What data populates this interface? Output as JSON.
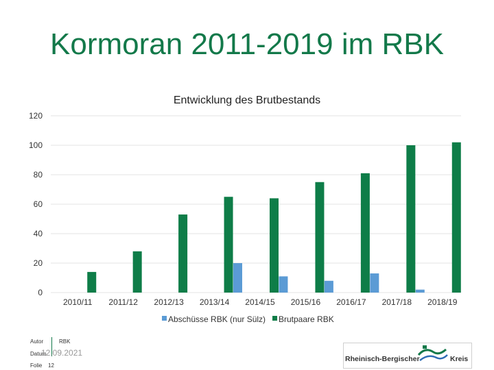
{
  "slide": {
    "title": "Kormoran 2011-2019 im RBK"
  },
  "colors": {
    "title": "#13794a",
    "series_1": "#5b9bd5",
    "series_2": "#0e7d48"
  },
  "chart_data": {
    "type": "bar",
    "title": "Entwicklung des Brutbestands",
    "categories": [
      "2010/11",
      "2011/12",
      "2012/13",
      "2013/14",
      "2014/15",
      "2015/16",
      "2016/17",
      "2017/18",
      "2018/19"
    ],
    "series": [
      {
        "name": "Abschüsse RBK (nur Sülz)",
        "values": [
          0,
          0,
          0,
          0,
          20,
          11,
          8,
          13,
          2
        ]
      },
      {
        "name": "Brutpaare RBK",
        "values": [
          14,
          28,
          53,
          65,
          64,
          75,
          81,
          100,
          102
        ]
      }
    ],
    "yticks": [
      "0",
      "20",
      "40",
      "60",
      "80",
      "100",
      "120"
    ],
    "ylim": [
      0,
      120
    ],
    "grid": true,
    "legend": "bottom"
  },
  "footer": {
    "autor_label": "Autor",
    "autor_value": "RBK",
    "datum_label": "Datum",
    "date": "12.09.2021",
    "folie_label": "Folie",
    "folie_value": "12",
    "logo_text_left": "Rheinisch-Bergischer",
    "logo_text_right": "Kreis"
  }
}
